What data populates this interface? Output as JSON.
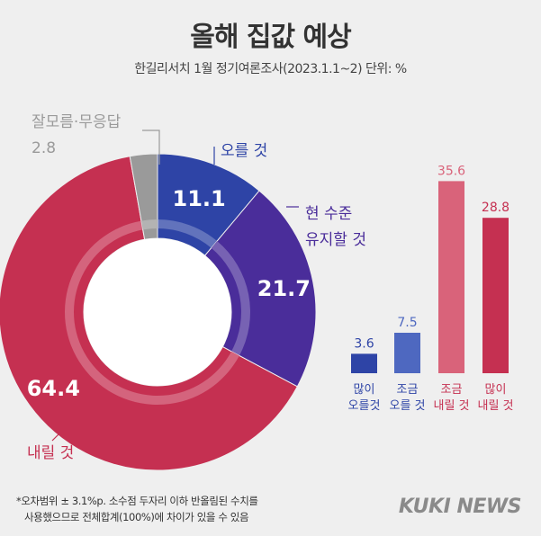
{
  "title": "올해 집값 예상",
  "subtitle": "한길리서치 1월 정기여론조사(2023.1.1~2) 단위: %",
  "chart_data": [
    {
      "type": "pie",
      "slices": [
        {
          "label": "오를 것",
          "value": 11.1,
          "color": "#2e44a6"
        },
        {
          "label": "현 수준 유지할 것",
          "value": 21.7,
          "color": "#4a2d9a"
        },
        {
          "label": "내릴 것",
          "value": 64.4,
          "color": "#c53051"
        },
        {
          "label": "잘모름·무응답",
          "value": 2.8,
          "color": "#9a9a9a"
        }
      ]
    },
    {
      "type": "bar",
      "categories": [
        "많이 오를것",
        "조금 오를 것",
        "조금 내릴 것",
        "많이 내릴 것"
      ],
      "values": [
        3.6,
        7.5,
        35.6,
        28.8
      ],
      "colors": [
        "#2e44a6",
        "#4e68c0",
        "#d9637a",
        "#c53051"
      ]
    }
  ],
  "footnote": {
    "line1": "*오차범위 ± 3.1%p. 소수점 두자리 이하 반올림된 수치를",
    "line2": "사용했으므로 전체합계(100%)에 차이가 있을 수 있음"
  },
  "logo": "KUKI NEWS",
  "colors": {
    "up": "#2e44a6",
    "same": "#4a2d9a",
    "down": "#c53051",
    "unknown": "#9a9a9a"
  }
}
